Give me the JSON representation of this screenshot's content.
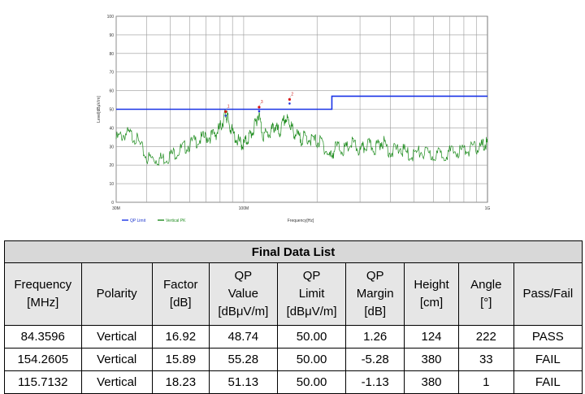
{
  "chart_data": {
    "type": "line",
    "x_scale": "log",
    "xlim_mhz": [
      30,
      1000
    ],
    "ylim": [
      0,
      100
    ],
    "grid": true,
    "ylabel": "Level[dBμV/m]",
    "xlabel": "Frequency[Hz]",
    "y_ticks": [
      "0",
      "10",
      "20",
      "30",
      "40",
      "50",
      "60",
      "70",
      "80",
      "90",
      "100"
    ],
    "x_tick_labels": [
      {
        "value": 30,
        "label": "30M"
      },
      {
        "value": 100,
        "label": "100M"
      },
      {
        "value": 1000,
        "label": "1G"
      }
    ],
    "legend": [
      "QP Limit",
      "Vertical PK"
    ],
    "legend_placement": "bottom-left",
    "series": [
      {
        "name": "QP Limit",
        "color": "#1a33e6",
        "points": [
          [
            30,
            50
          ],
          [
            230,
            50
          ],
          [
            230,
            57
          ],
          [
            1000,
            57
          ]
        ]
      },
      {
        "name": "Vertical PK",
        "color": "#1e8c1e",
        "points": [
          [
            30,
            34
          ],
          [
            33,
            37
          ],
          [
            36,
            35
          ],
          [
            40,
            24
          ],
          [
            44,
            23
          ],
          [
            48,
            24
          ],
          [
            53,
            27
          ],
          [
            58,
            30
          ],
          [
            64,
            33
          ],
          [
            70,
            35
          ],
          [
            76,
            36
          ],
          [
            80,
            40
          ],
          [
            84,
            47
          ],
          [
            86,
            45
          ],
          [
            90,
            37
          ],
          [
            96,
            32
          ],
          [
            100,
            31
          ],
          [
            105,
            35
          ],
          [
            110,
            39
          ],
          [
            115,
            48
          ],
          [
            120,
            36
          ],
          [
            128,
            37
          ],
          [
            134,
            41
          ],
          [
            140,
            37
          ],
          [
            148,
            45
          ],
          [
            154,
            43
          ],
          [
            160,
            38
          ],
          [
            170,
            34
          ],
          [
            180,
            35
          ],
          [
            195,
            33
          ],
          [
            210,
            32
          ],
          [
            225,
            24
          ],
          [
            240,
            30
          ],
          [
            260,
            28
          ],
          [
            280,
            32
          ],
          [
            300,
            27
          ],
          [
            320,
            31
          ],
          [
            345,
            29
          ],
          [
            370,
            33
          ],
          [
            400,
            27
          ],
          [
            440,
            29
          ],
          [
            480,
            25
          ],
          [
            530,
            27
          ],
          [
            590,
            25
          ],
          [
            650,
            26
          ],
          [
            720,
            27
          ],
          [
            800,
            28
          ],
          [
            880,
            29
          ],
          [
            950,
            30
          ],
          [
            1000,
            32
          ]
        ]
      }
    ],
    "markers": [
      {
        "label": "1",
        "freq": 84.3596,
        "value": 48.74
      },
      {
        "label": "2",
        "freq": 154.2605,
        "value": 55.28
      },
      {
        "label": "3",
        "freq": 115.7132,
        "value": 51.13
      }
    ]
  },
  "table": {
    "title": "Final Data List",
    "headers": [
      [
        "Frequency",
        "[MHz]"
      ],
      [
        "Polarity"
      ],
      [
        "Factor",
        "[dB]"
      ],
      [
        "QP",
        "Value",
        "[dBμV/m]"
      ],
      [
        "QP",
        "Limit",
        "[dBμV/m]"
      ],
      [
        "QP",
        "Margin",
        "[dB]"
      ],
      [
        "Height",
        "[cm]"
      ],
      [
        "Angle",
        "[°]"
      ],
      [
        "Pass/Fail"
      ]
    ],
    "rows": [
      [
        "84.3596",
        "Vertical",
        "16.92",
        "48.74",
        "50.00",
        "1.26",
        "124",
        "222",
        "PASS"
      ],
      [
        "154.2605",
        "Vertical",
        "15.89",
        "55.28",
        "50.00",
        "-5.28",
        "380",
        "33",
        "FAIL"
      ],
      [
        "115.7132",
        "Vertical",
        "18.23",
        "51.13",
        "50.00",
        "-1.13",
        "380",
        "1",
        "FAIL"
      ]
    ]
  }
}
